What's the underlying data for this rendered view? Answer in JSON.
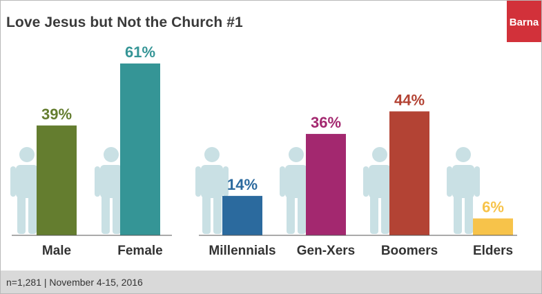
{
  "title": "Love Jesus but Not the Church #1",
  "logo": {
    "text": "Barna",
    "color": "#d2313a"
  },
  "footer": {
    "text": "n=1,281  |  November 4-15, 2016"
  },
  "chart_data": {
    "type": "bar",
    "title": "Love Jesus but Not the Church #1",
    "unit": "%",
    "ylim": [
      0,
      61
    ],
    "groups": [
      {
        "name": "gender",
        "categories": [
          "Male",
          "Female"
        ],
        "values": [
          39,
          61
        ],
        "colors": [
          "#647d2f",
          "#359596"
        ]
      },
      {
        "name": "generation",
        "categories": [
          "Millennials",
          "Gen-Xers",
          "Boomers",
          "Elders"
        ],
        "values": [
          14,
          36,
          44,
          6
        ],
        "colors": [
          "#2b6a9e",
          "#a3286f",
          "#b34334",
          "#f7c34a"
        ]
      }
    ]
  }
}
